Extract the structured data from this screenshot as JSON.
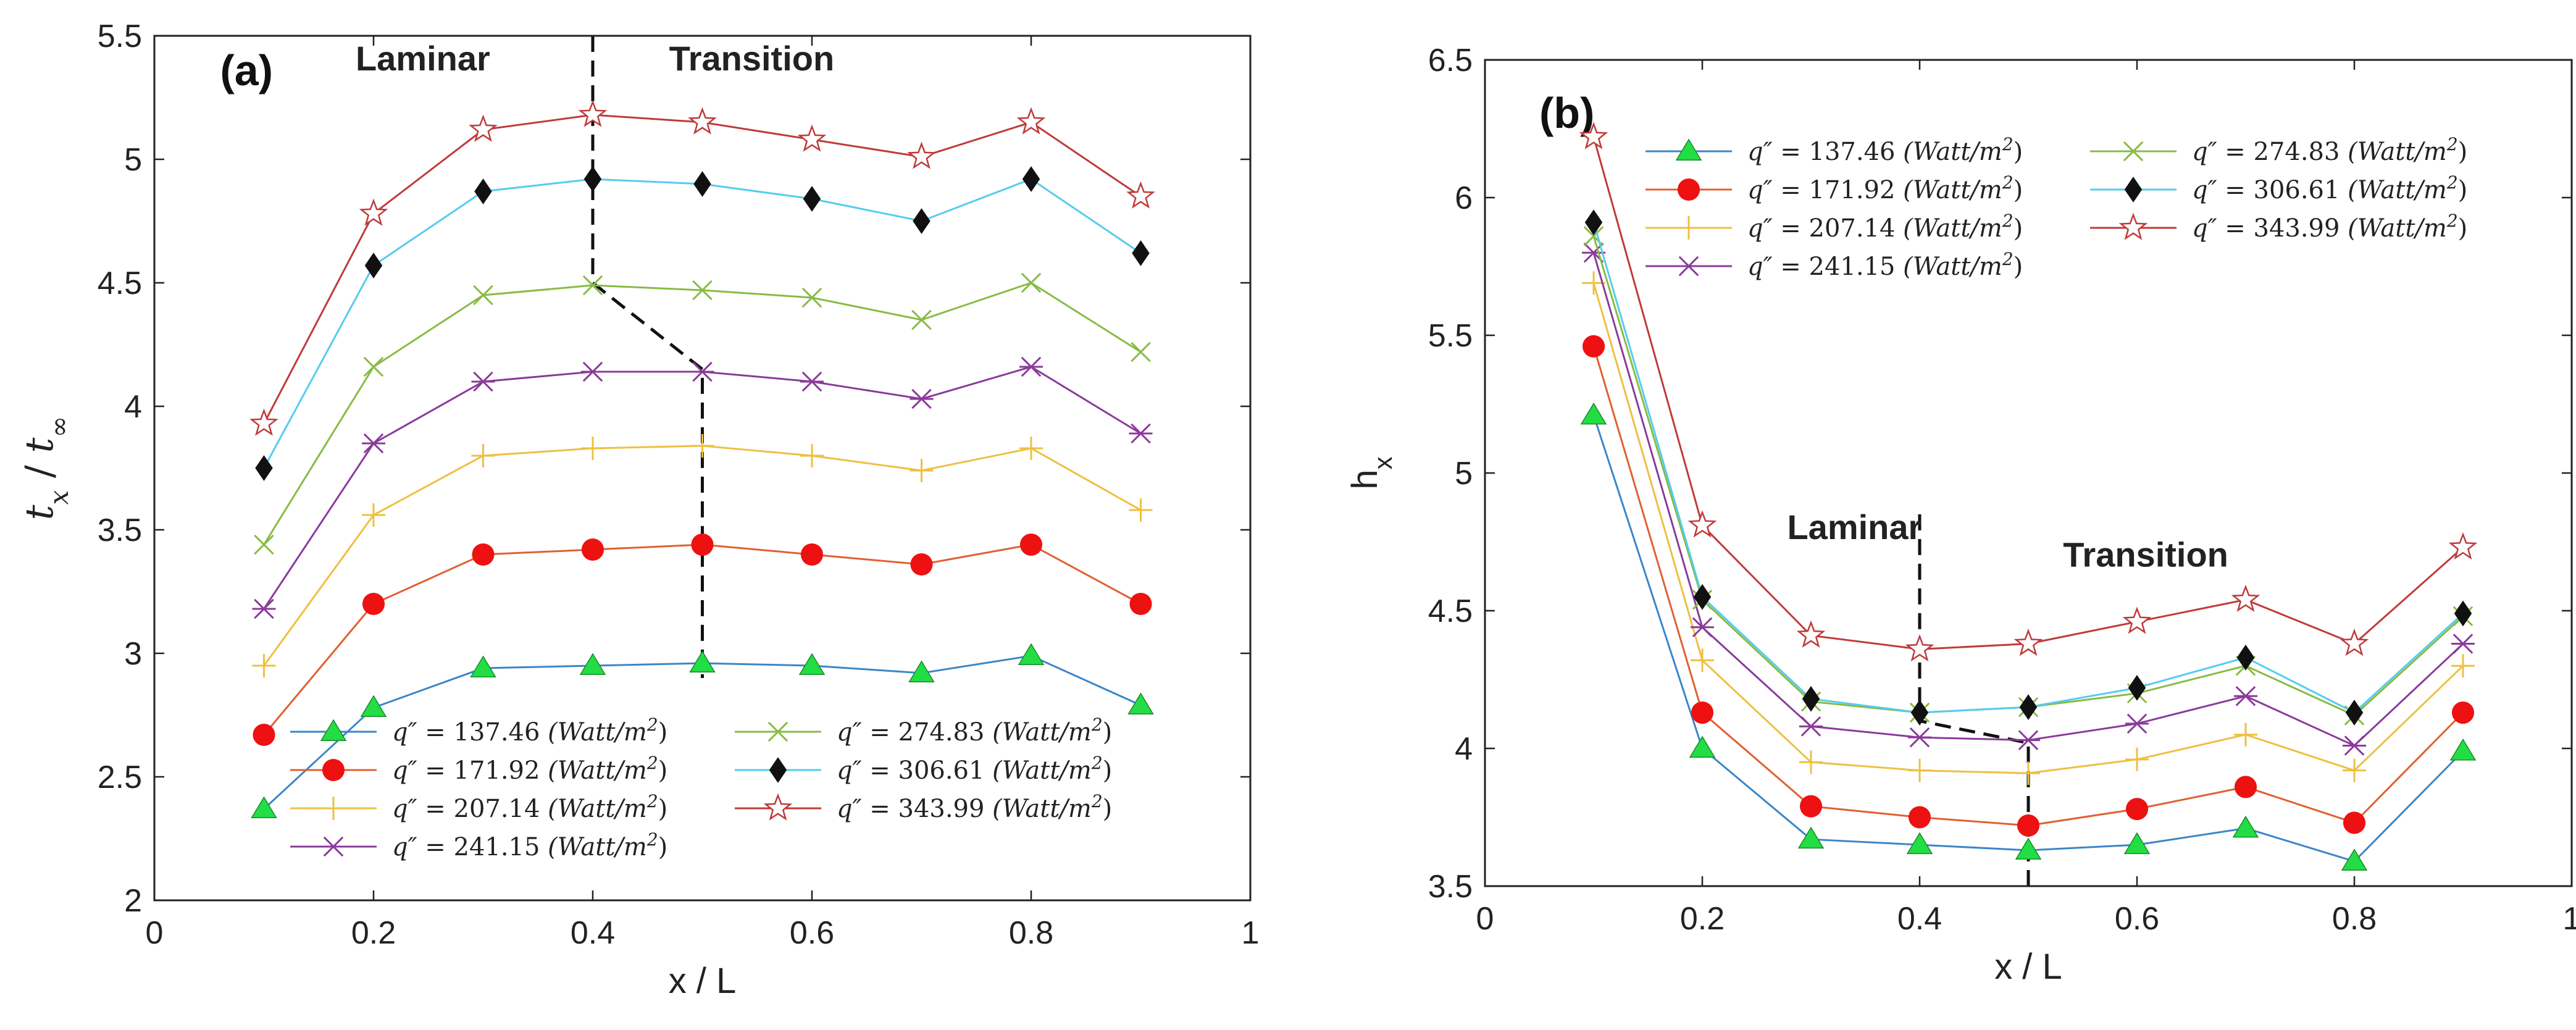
{
  "chart_data": [
    {
      "type": "line",
      "panel_label": "(a)",
      "xlabel": "x / L",
      "ylabel": "t_x / t_∞",
      "ylabel_parts": {
        "main": "t",
        "sub": "x",
        "sep": " / ",
        "main2": "t",
        "sub2": "∞"
      },
      "xlim": [
        0,
        1
      ],
      "ylim": [
        2,
        5.5
      ],
      "xticks": [
        0,
        0.2,
        0.4,
        0.6,
        0.8,
        1
      ],
      "xtick_labels": [
        "0",
        "0.2",
        "0.4",
        "0.6",
        "0.8",
        "1"
      ],
      "yticks": [
        2,
        2.5,
        3,
        3.5,
        4,
        4.5,
        5,
        5.5
      ],
      "ytick_labels": [
        "2",
        "2.5",
        "3",
        "3.5",
        "4",
        "4.5",
        "5",
        "5.5"
      ],
      "x": [
        0.1,
        0.2,
        0.3,
        0.4,
        0.5,
        0.6,
        0.7,
        0.8,
        0.9
      ],
      "region_labels": [
        "Laminar",
        "Transition"
      ],
      "boundary_line": [
        [
          0.4,
          5.5
        ],
        [
          0.4,
          4.5
        ],
        [
          0.5,
          4.15
        ],
        [
          0.5,
          2.9
        ]
      ],
      "legend_position": "bottom-center",
      "series": [
        {
          "name": "q″ = 137.46 (Watt/m²)",
          "legend": {
            "sym": "q″",
            "eq": " = 137.46 ",
            "unit": "(Watt/m",
            "exp": "2",
            "close": ")"
          },
          "color": "#3a86c8",
          "marker": "triangle",
          "marker_color": "#22dd44",
          "values": [
            2.37,
            2.78,
            2.94,
            2.95,
            2.96,
            2.95,
            2.92,
            2.99,
            2.79
          ]
        },
        {
          "name": "q″ = 171.92 (Watt/m²)",
          "legend": {
            "sym": "q″",
            "eq": " = 171.92 ",
            "unit": "(Watt/m",
            "exp": "2",
            "close": ")"
          },
          "color": "#e06030",
          "marker": "circle",
          "marker_color": "#ee1111",
          "values": [
            2.67,
            3.2,
            3.4,
            3.42,
            3.44,
            3.4,
            3.36,
            3.44,
            3.2
          ]
        },
        {
          "name": "q″ = 207.14 (Watt/m²)",
          "legend": {
            "sym": "q″",
            "eq": " = 207.14 ",
            "unit": "(Watt/m",
            "exp": "2",
            "close": ")"
          },
          "color": "#eec040",
          "marker": "plus",
          "marker_color": "#eec040",
          "values": [
            2.95,
            3.56,
            3.8,
            3.83,
            3.84,
            3.8,
            3.74,
            3.83,
            3.58
          ]
        },
        {
          "name": "q″ = 241.15 (Watt/m²)",
          "legend": {
            "sym": "q″",
            "eq": " = 241.15 ",
            "unit": "(Watt/m",
            "exp": "2",
            "close": ")"
          },
          "color": "#8a3a9a",
          "marker": "star6",
          "marker_color": "#8a3a9a",
          "values": [
            3.18,
            3.85,
            4.1,
            4.14,
            4.14,
            4.1,
            4.03,
            4.16,
            3.89
          ]
        },
        {
          "name": "q″ = 274.83 (Watt/m²)",
          "legend": {
            "sym": "q″",
            "eq": " = 274.83 ",
            "unit": "(Watt/m",
            "exp": "2",
            "close": ")"
          },
          "color": "#88bb44",
          "marker": "x",
          "marker_color": "#88bb44",
          "values": [
            3.44,
            4.16,
            4.45,
            4.49,
            4.47,
            4.44,
            4.35,
            4.5,
            4.22
          ]
        },
        {
          "name": "q″ = 306.61 (Watt/m²)",
          "legend": {
            "sym": "q″",
            "eq": " = 306.61 ",
            "unit": "(Watt/m",
            "exp": "2",
            "close": ")"
          },
          "color": "#55ccee",
          "marker": "diamond",
          "marker_color": "#111111",
          "values": [
            3.75,
            4.57,
            4.87,
            4.92,
            4.9,
            4.84,
            4.75,
            4.92,
            4.62
          ]
        },
        {
          "name": "q″ = 343.99 (Watt/m²)",
          "legend": {
            "sym": "q″",
            "eq": " = 343.99 ",
            "unit": "(Watt/m",
            "exp": "2",
            "close": ")"
          },
          "color": "#c03a3a",
          "marker": "pentagram",
          "marker_color": "#c03a3a",
          "values": [
            3.93,
            4.78,
            5.12,
            5.18,
            5.15,
            5.08,
            5.01,
            5.15,
            4.85
          ]
        }
      ]
    },
    {
      "type": "line",
      "panel_label": "(b)",
      "xlabel": "x / L",
      "ylabel": "h_x",
      "ylabel_parts": {
        "main": "h",
        "sub": "x"
      },
      "xlim": [
        0,
        1
      ],
      "ylim": [
        3.5,
        6.5
      ],
      "xticks": [
        0,
        0.2,
        0.4,
        0.6,
        0.8,
        1
      ],
      "xtick_labels": [
        "0",
        "0.2",
        "0.4",
        "0.6",
        "0.8",
        "1"
      ],
      "yticks": [
        3.5,
        4,
        4.5,
        5,
        5.5,
        6,
        6.5
      ],
      "ytick_labels": [
        "3.5",
        "4",
        "4.5",
        "5",
        "5.5",
        "6",
        "6.5"
      ],
      "x": [
        0.1,
        0.2,
        0.3,
        0.4,
        0.5,
        0.6,
        0.7,
        0.8,
        0.9
      ],
      "region_labels": [
        "Laminar",
        "Transition"
      ],
      "boundary_line": [
        [
          0.4,
          4.85
        ],
        [
          0.4,
          4.1
        ],
        [
          0.5,
          4.02
        ],
        [
          0.5,
          3.5
        ]
      ],
      "legend_position": "top-center",
      "series": [
        {
          "name": "q″ = 137.46 (Watt/m²)",
          "legend": {
            "sym": "q″",
            "eq": " = 137.46 ",
            "unit": "(Watt/m",
            "exp": "2",
            "close": ")"
          },
          "color": "#3a86c8",
          "marker": "triangle",
          "marker_color": "#22dd44",
          "values": [
            5.21,
            4.0,
            3.67,
            3.65,
            3.63,
            3.65,
            3.71,
            3.59,
            3.99
          ]
        },
        {
          "name": "q″ = 171.92 (Watt/m²)",
          "legend": {
            "sym": "q″",
            "eq": " = 171.92 ",
            "unit": "(Watt/m",
            "exp": "2",
            "close": ")"
          },
          "color": "#e06030",
          "marker": "circle",
          "marker_color": "#ee1111",
          "values": [
            5.46,
            4.13,
            3.79,
            3.75,
            3.72,
            3.78,
            3.86,
            3.73,
            4.13
          ]
        },
        {
          "name": "q″ = 207.14 (Watt/m²)",
          "legend": {
            "sym": "q″",
            "eq": " = 207.14 ",
            "unit": "(Watt/m",
            "exp": "2",
            "close": ")"
          },
          "color": "#eec040",
          "marker": "plus",
          "marker_color": "#eec040",
          "values": [
            5.69,
            4.32,
            3.95,
            3.92,
            3.91,
            3.96,
            4.05,
            3.92,
            4.3
          ]
        },
        {
          "name": "q″ = 241.15 (Watt/m²)",
          "legend": {
            "sym": "q″",
            "eq": " = 241.15 ",
            "unit": "(Watt/m",
            "exp": "2",
            "close": ")"
          },
          "color": "#8a3a9a",
          "marker": "star6",
          "marker_color": "#8a3a9a",
          "values": [
            5.8,
            4.44,
            4.08,
            4.04,
            4.03,
            4.09,
            4.19,
            4.01,
            4.38
          ]
        },
        {
          "name": "q″ = 274.83 (Watt/m²)",
          "legend": {
            "sym": "q″",
            "eq": " = 274.83 ",
            "unit": "(Watt/m",
            "exp": "2",
            "close": ")"
          },
          "color": "#88bb44",
          "marker": "x",
          "marker_color": "#88bb44",
          "values": [
            5.86,
            4.54,
            4.17,
            4.13,
            4.15,
            4.2,
            4.3,
            4.12,
            4.48
          ]
        },
        {
          "name": "q″ = 306.61 (Watt/m²)",
          "legend": {
            "sym": "q″",
            "eq": " = 306.61 ",
            "unit": "(Watt/m",
            "exp": "2",
            "close": ")"
          },
          "color": "#55ccee",
          "marker": "diamond",
          "marker_color": "#111111",
          "values": [
            5.91,
            4.55,
            4.18,
            4.13,
            4.15,
            4.22,
            4.33,
            4.13,
            4.49
          ]
        },
        {
          "name": "q″ = 343.99 (Watt/m²)",
          "legend": {
            "sym": "q″",
            "eq": " = 343.99 ",
            "unit": "(Watt/m",
            "exp": "2",
            "close": ")"
          },
          "color": "#c03a3a",
          "marker": "pentagram",
          "marker_color": "#c03a3a",
          "values": [
            6.22,
            4.81,
            4.41,
            4.36,
            4.38,
            4.46,
            4.54,
            4.38,
            4.73
          ]
        }
      ]
    }
  ]
}
